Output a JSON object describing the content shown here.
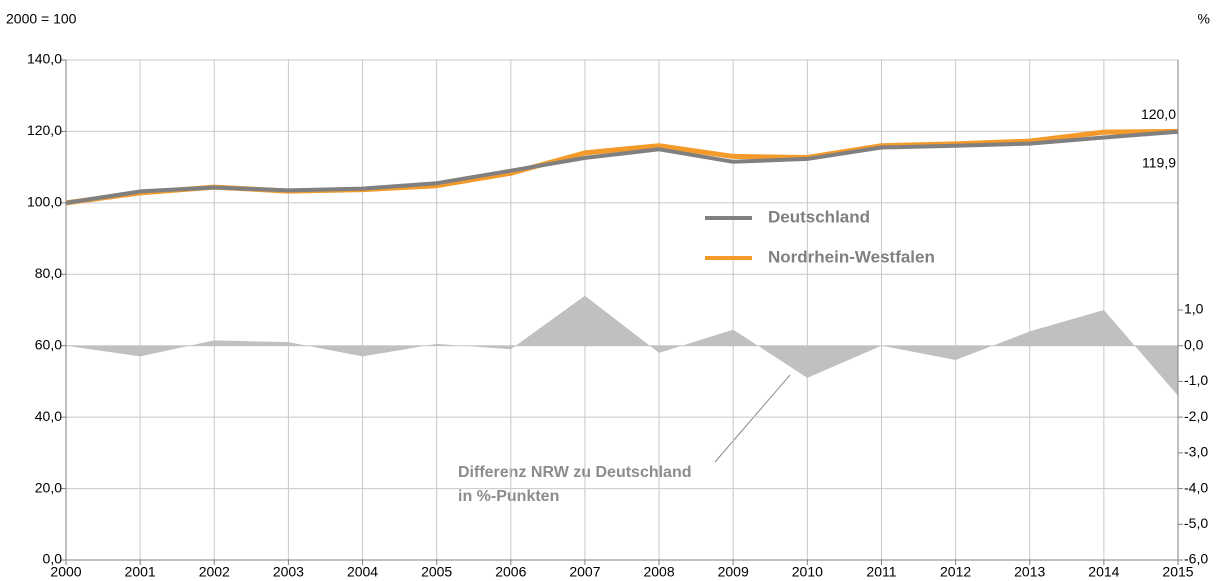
{
  "chart_data": {
    "type": "line",
    "y_label": "2000 = 100",
    "y2_label": "%",
    "x": [
      2000,
      2001,
      2002,
      2003,
      2004,
      2005,
      2006,
      2007,
      2008,
      2009,
      2010,
      2011,
      2012,
      2013,
      2014,
      2015
    ],
    "xlim": [
      2000,
      2015
    ],
    "xticks": [
      2000,
      2001,
      2002,
      2003,
      2004,
      2005,
      2006,
      2007,
      2008,
      2009,
      2010,
      2011,
      2012,
      2013,
      2014,
      2015
    ],
    "ylim": [
      0,
      140
    ],
    "yticks": [
      {
        "value": 0,
        "label": "0,0"
      },
      {
        "value": 20,
        "label": "20,0"
      },
      {
        "value": 40,
        "label": "40,0"
      },
      {
        "value": 60,
        "label": "60,0"
      },
      {
        "value": 80,
        "label": "80,0"
      },
      {
        "value": 100,
        "label": "100,0"
      },
      {
        "value": 120,
        "label": "120,0"
      },
      {
        "value": 140,
        "label": "140,0"
      }
    ],
    "y2lim": [
      -6,
      8
    ],
    "y2ticks": [
      {
        "value": -6,
        "label": "-6,0"
      },
      {
        "value": -5,
        "label": "-5,0"
      },
      {
        "value": -4,
        "label": "-4,0"
      },
      {
        "value": -3,
        "label": "-3,0"
      },
      {
        "value": -2,
        "label": "-2,0"
      },
      {
        "value": -1,
        "label": "-1,0"
      },
      {
        "value": 0,
        "label": "0,0"
      },
      {
        "value": 1,
        "label": "1,0"
      }
    ],
    "grid": true,
    "series": [
      {
        "name": "Nordrhein-Westfalen",
        "color": "#f39a2b",
        "values": [
          100,
          102.8,
          104.4,
          103.3,
          103.7,
          104.8,
          108.3,
          114,
          116,
          113,
          112.7,
          116,
          116.5,
          117.3,
          119.8,
          120.0
        ],
        "end_label": "120,0"
      },
      {
        "name": "Deutschland",
        "color": "#808080",
        "values": [
          100,
          103.2,
          104.3,
          103.5,
          104,
          105.5,
          109,
          112.6,
          115,
          111.5,
          112.3,
          115.5,
          116,
          116.6,
          118.3,
          119.9
        ],
        "end_label": "119,9"
      },
      {
        "axis": "y2",
        "kind": "area",
        "color": "#c0c0c0",
        "values": [
          0,
          -0.3,
          0.15,
          0.1,
          -0.3,
          0.05,
          -0.1,
          1.4,
          -0.2,
          0.45,
          -0.9,
          0,
          -0.4,
          0.4,
          1.0,
          -1.4
        ]
      }
    ],
    "annotations": [
      "Differenz NRW zu Deutschland",
      "in %-Punkten"
    ]
  }
}
